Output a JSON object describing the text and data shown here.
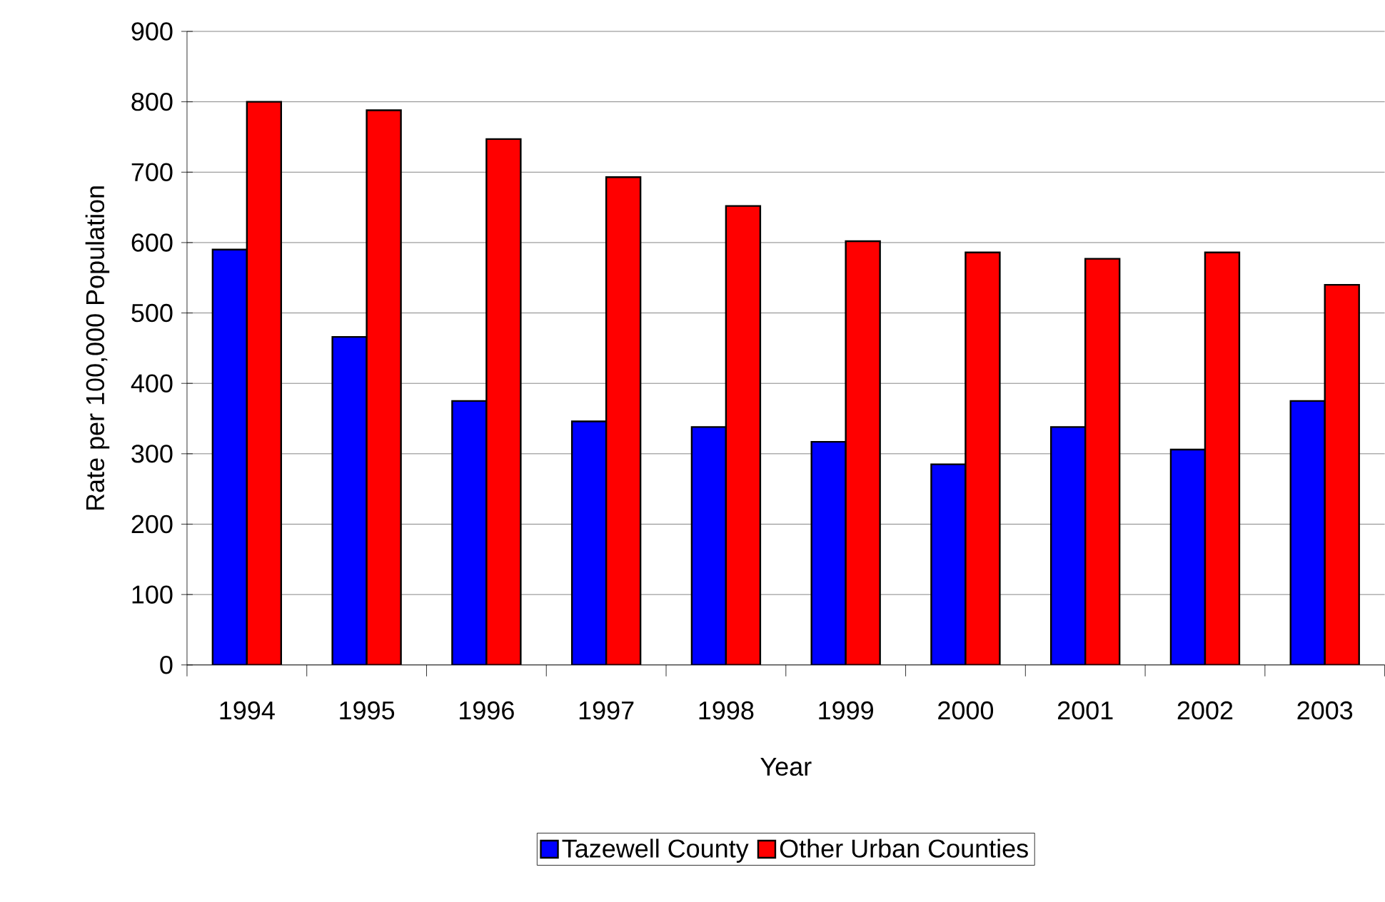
{
  "chart_data": {
    "type": "bar",
    "xlabel": "Year",
    "ylabel": "Rate per 100,000 Population",
    "categories": [
      "1994",
      "1995",
      "1996",
      "1997",
      "1998",
      "1999",
      "2000",
      "2001",
      "2002",
      "2003"
    ],
    "series": [
      {
        "name": "Tazewell County",
        "color": "#0000ff",
        "values": [
          590,
          466,
          375,
          346,
          338,
          317,
          285,
          338,
          306,
          375
        ]
      },
      {
        "name": "Other Urban Counties",
        "color": "#ff0000",
        "values": [
          800,
          788,
          747,
          693,
          652,
          602,
          586,
          577,
          586,
          540
        ]
      }
    ],
    "ylim": [
      0,
      900
    ],
    "yticks": [
      0,
      100,
      200,
      300,
      400,
      500,
      600,
      700,
      800,
      900
    ],
    "grid": "y",
    "legend": "bottom"
  }
}
